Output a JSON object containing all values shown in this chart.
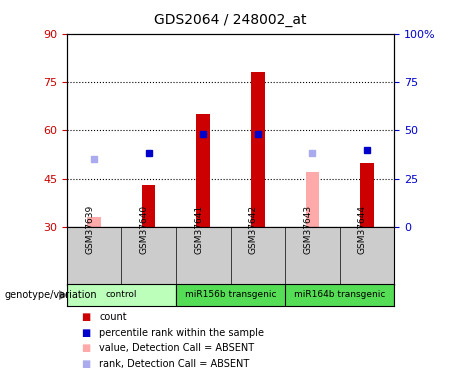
{
  "title": "GDS2064 / 248002_at",
  "samples": [
    "GSM37639",
    "GSM37640",
    "GSM37641",
    "GSM37642",
    "GSM37643",
    "GSM37644"
  ],
  "group_xranges": [
    [
      -0.5,
      1.5
    ],
    [
      1.5,
      3.5
    ],
    [
      3.5,
      5.5
    ]
  ],
  "group_labels": [
    "control",
    "miR156b transgenic",
    "miR164b transgenic"
  ],
  "group_colors": [
    "#bbffbb",
    "#55dd55",
    "#55dd55"
  ],
  "ylim_left": [
    30,
    90
  ],
  "ylim_right": [
    0,
    100
  ],
  "yticks_left": [
    30,
    45,
    60,
    75,
    90
  ],
  "yticks_right": [
    0,
    25,
    50,
    75,
    100
  ],
  "ytick_labels_right": [
    "0",
    "25",
    "50",
    "75",
    "100%"
  ],
  "red_bars": [
    null,
    43,
    65,
    78,
    null,
    50
  ],
  "pink_bars": [
    33,
    null,
    null,
    null,
    47,
    null
  ],
  "blue_squares": [
    null,
    53,
    59,
    59,
    null,
    54
  ],
  "lavender_squares": [
    51,
    null,
    null,
    null,
    53,
    null
  ],
  "bar_bottom": 30,
  "red_color": "#cc0000",
  "pink_color": "#ffaaaa",
  "blue_color": "#0000cc",
  "lavender_color": "#aaaaee",
  "plot_bg": "#ffffff",
  "label_color_left": "#cc0000",
  "label_color_right": "#0000cc",
  "sample_bg": "#cccccc",
  "legend_items": [
    {
      "label": "count",
      "color": "#cc0000"
    },
    {
      "label": "percentile rank within the sample",
      "color": "#0000cc"
    },
    {
      "label": "value, Detection Call = ABSENT",
      "color": "#ffaaaa"
    },
    {
      "label": "rank, Detection Call = ABSENT",
      "color": "#aaaaee"
    }
  ],
  "bar_width": 0.25
}
